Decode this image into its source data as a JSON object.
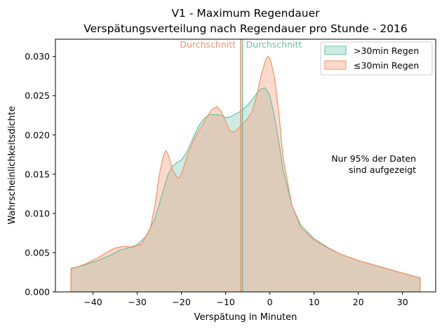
{
  "chart_data": {
    "type": "area",
    "title": "V1 - Maximum Regendauer",
    "subtitle": "Verspätungsverteilung nach Regendauer pro Stunde - 2016",
    "xlabel": "Verspätung in Minuten",
    "ylabel": "Wahrscheinlichkeitsdichte",
    "xlim": [
      -48.5,
      37.5
    ],
    "ylim": [
      0,
      0.0322
    ],
    "x_ticks": [
      -40,
      -30,
      -20,
      -10,
      0,
      10,
      20,
      30
    ],
    "y_ticks": [
      0.0,
      0.005,
      0.01,
      0.015,
      0.02,
      0.025,
      0.03
    ],
    "y_tick_labels": [
      "0.000",
      "0.005",
      "0.010",
      "0.015",
      "0.020",
      "0.025",
      "0.030"
    ],
    "grid": false,
    "legend_position": "top-right",
    "annotation": [
      "Nur 95% der Daten",
      "sind aufgezeigt"
    ],
    "mean_label": "Durchschnitt",
    "colors": {
      "long_line": "#66c2a5",
      "long_fill": "#66c2a5",
      "short_line": "#fc8d62",
      "short_fill": "#fc8d62"
    },
    "series": [
      {
        "name": ">30min Regen",
        "mean": -6.2,
        "x": [
          -45,
          -42,
          -39,
          -36,
          -34,
          -32,
          -30,
          -28,
          -26,
          -25,
          -24,
          -23,
          -22,
          -21,
          -20,
          -19,
          -18,
          -17,
          -16,
          -15,
          -14,
          -13,
          -12,
          -11,
          -10,
          -9,
          -8,
          -7,
          -6,
          -5,
          -4,
          -3,
          -2,
          -1,
          0,
          1,
          2,
          3,
          5,
          7,
          10,
          13,
          16,
          20,
          25,
          30,
          34
        ],
        "y": [
          0.003,
          0.0034,
          0.004,
          0.0047,
          0.0053,
          0.0056,
          0.006,
          0.0071,
          0.0093,
          0.0112,
          0.0132,
          0.015,
          0.016,
          0.0165,
          0.0168,
          0.0176,
          0.0188,
          0.0201,
          0.0212,
          0.022,
          0.0225,
          0.0226,
          0.0226,
          0.0225,
          0.0222,
          0.0223,
          0.0226,
          0.0229,
          0.0233,
          0.0238,
          0.0245,
          0.0253,
          0.0259,
          0.026,
          0.025,
          0.0225,
          0.0192,
          0.0155,
          0.011,
          0.0085,
          0.0068,
          0.0057,
          0.0048,
          0.004,
          0.0032,
          0.0024,
          0.0018
        ]
      },
      {
        "name": "≤30min Regen",
        "mean": -6.6,
        "x": [
          -45,
          -42,
          -39,
          -37,
          -35,
          -33,
          -31,
          -29,
          -27,
          -26,
          -25,
          -24,
          -23.5,
          -23,
          -22,
          -21,
          -20.5,
          -20,
          -19,
          -18,
          -17,
          -16,
          -15,
          -14,
          -13,
          -12,
          -11,
          -10,
          -9,
          -8,
          -7,
          -6,
          -5,
          -4,
          -3,
          -2,
          -1,
          -0.5,
          0,
          1,
          2,
          3,
          5,
          7,
          10,
          13,
          16,
          20,
          25,
          30,
          34
        ],
        "y": [
          0.0029,
          0.0035,
          0.0043,
          0.005,
          0.0056,
          0.0058,
          0.0057,
          0.0061,
          0.0082,
          0.011,
          0.015,
          0.0175,
          0.018,
          0.0175,
          0.0156,
          0.0146,
          0.0145,
          0.015,
          0.0168,
          0.0183,
          0.0196,
          0.0206,
          0.0215,
          0.0225,
          0.0233,
          0.0236,
          0.023,
          0.0217,
          0.0205,
          0.0204,
          0.0209,
          0.0215,
          0.0221,
          0.023,
          0.025,
          0.0275,
          0.0295,
          0.03,
          0.0298,
          0.0275,
          0.023,
          0.017,
          0.011,
          0.0082,
          0.0066,
          0.0056,
          0.0048,
          0.004,
          0.0032,
          0.0024,
          0.0018
        ]
      }
    ]
  }
}
